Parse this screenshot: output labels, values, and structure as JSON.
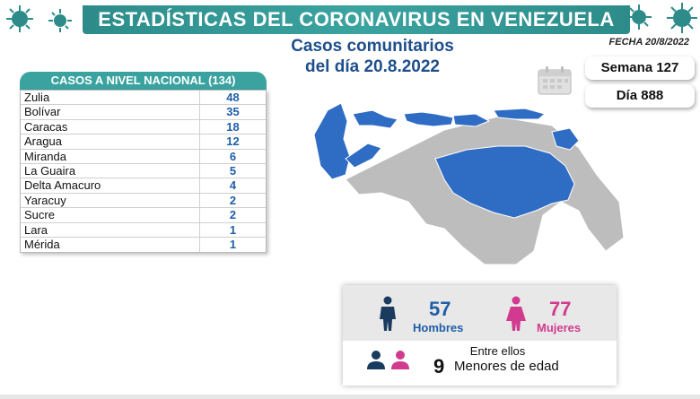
{
  "banner": {
    "title": "ESTADÍSTICAS DEL CORONAVIRUS EN VENEZUELA"
  },
  "subtitle": {
    "line1": "Casos comunitarios",
    "line2": "del día 20.8.2022"
  },
  "fecha": "FECHA 20/8/2022",
  "table": {
    "header": "CASOS A NIVEL NACIONAL  (134)",
    "rows": [
      {
        "name": "Zulia",
        "value": "48"
      },
      {
        "name": "Bolívar",
        "value": "35"
      },
      {
        "name": "Caracas",
        "value": "18"
      },
      {
        "name": "Aragua",
        "value": "12"
      },
      {
        "name": "Miranda",
        "value": "6"
      },
      {
        "name": "La Guaira",
        "value": "5"
      },
      {
        "name": "Delta Amacuro",
        "value": "4"
      },
      {
        "name": "Yaracuy",
        "value": "2"
      },
      {
        "name": "Sucre",
        "value": "2"
      },
      {
        "name": "Lara",
        "value": "1"
      },
      {
        "name": "Mérida",
        "value": "1"
      }
    ]
  },
  "semana": "Semana 127",
  "dia": "Día 888",
  "stats": {
    "hombres_num": "57",
    "hombres_label": "Hombres",
    "mujeres_num": "77",
    "mujeres_label": "Mujeres",
    "entre": "Entre ellos",
    "menores_num": "9",
    "menores_label": "Menores de edad"
  },
  "colors": {
    "teal": "#3aa3a0",
    "blue": "#1e5ea8",
    "magenta": "#d13a8e",
    "map_gray": "#bdbdbd",
    "map_blue": "#2f6cc4"
  }
}
